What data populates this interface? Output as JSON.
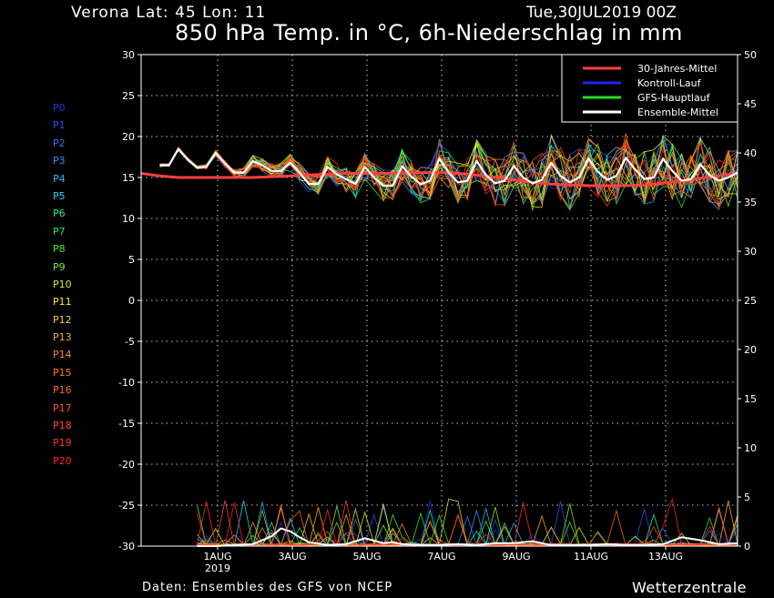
{
  "header": {
    "station": "Verona  Lat: 45 Lon: 11",
    "run": "Tue,30JUL2019 00Z",
    "title": "850 hPa Temp. in °C, 6h-Niederschlag in mm"
  },
  "footer": {
    "source": "Daten: Ensembles des GFS von NCEP",
    "brand": "Wetterzentrale"
  },
  "members": [
    "P0",
    "P1",
    "P2",
    "P3",
    "P4",
    "P5",
    "P6",
    "P7",
    "P8",
    "P9",
    "P10",
    "P11",
    "P12",
    "P13",
    "P14",
    "P15",
    "P16",
    "P17",
    "P18",
    "P19",
    "P20"
  ],
  "member_colors": [
    "#2233dd",
    "#2255ee",
    "#2277ff",
    "#2299ff",
    "#22bbff",
    "#22ddee",
    "#22ee99",
    "#22ee55",
    "#44ee22",
    "#88ee22",
    "#ccee22",
    "#ffee22",
    "#ffcc22",
    "#ffaa22",
    "#ff8822",
    "#ff7722",
    "#ff6622",
    "#ff5522",
    "#ff4422",
    "#ff3322",
    "#ff2222"
  ],
  "chart_data": {
    "type": "line",
    "x_labels": [
      "1AUG",
      "3AUG",
      "5AUG",
      "7AUG",
      "9AUG",
      "11AUG",
      "13AUG"
    ],
    "x_sublabel": "2019",
    "y_left": {
      "range": [
        -30,
        30
      ],
      "ticks": [
        30,
        25,
        20,
        15,
        10,
        5,
        0,
        -5,
        -10,
        -15,
        -20,
        -25,
        -30
      ]
    },
    "y_right": {
      "range": [
        0,
        50
      ],
      "ticks": [
        50,
        45,
        40,
        35,
        30,
        25,
        20,
        15,
        10,
        5,
        0
      ]
    },
    "grid": true,
    "legend_position": "top-right",
    "legend": [
      {
        "label": "30-Jahres-Mittel",
        "color": "#ff4040"
      },
      {
        "label": "Kontroll-Lauf",
        "color": "#2222ff"
      },
      {
        "label": "GFS-Hauptlauf",
        "color": "#22dd22"
      },
      {
        "label": "Ensemble-Mittel",
        "color": "#ffffff"
      }
    ],
    "series": [
      {
        "name": "30-Jahres-Mittel",
        "axis": "left",
        "x": [
          -1.5,
          -1,
          -0.5,
          0,
          0.5,
          1,
          1.5,
          2,
          2.5,
          3,
          3.5,
          4,
          4.5,
          5,
          5.5,
          6,
          6.5,
          7,
          7.5,
          8,
          8.5,
          9,
          9.5,
          10,
          10.5,
          11,
          11.5,
          12,
          12.5,
          13,
          13.5,
          14,
          14.5
        ],
        "y": [
          15.5,
          15.2,
          15.0,
          15.0,
          15.0,
          15.0,
          15.0,
          15.1,
          15.2,
          15.3,
          15.4,
          15.5,
          15.5,
          15.5,
          15.6,
          15.6,
          15.6,
          15.5,
          15.3,
          15.0,
          14.7,
          14.4,
          14.2,
          14.1,
          14.0,
          14.0,
          14.0,
          14.1,
          14.3,
          14.6,
          14.9,
          15.2,
          15.5
        ]
      },
      {
        "name": "Ensemble-Mittel",
        "axis": "left",
        "x": [
          -1,
          -0.75,
          -0.5,
          -0.25,
          0,
          0.25,
          0.5,
          0.75,
          1,
          1.25,
          1.5,
          1.75,
          2,
          2.25,
          2.5,
          2.75,
          3,
          3.25,
          3.5,
          3.75,
          4,
          4.25,
          4.5,
          4.75,
          5,
          5.25,
          5.5,
          5.75,
          6,
          6.25,
          6.5,
          6.75,
          7,
          7.25,
          7.5,
          7.75,
          8,
          8.25,
          8.5,
          8.75,
          9,
          9.25,
          9.5,
          9.75,
          10,
          10.25,
          10.5,
          10.75,
          11,
          11.25,
          11.5,
          11.75,
          12,
          12.25,
          12.5,
          12.75,
          13,
          13.25,
          13.5,
          13.75,
          14,
          14.25,
          14.5
        ],
        "y": [
          16.5,
          16.5,
          18.5,
          17.2,
          16.2,
          16.3,
          18.0,
          16.7,
          15.6,
          15.6,
          17.0,
          16.5,
          15.8,
          15.8,
          16.8,
          15.6,
          14.2,
          14.2,
          16.3,
          15.4,
          14.8,
          14.2,
          16.3,
          15.0,
          14.0,
          14.0,
          16.4,
          15.1,
          14.2,
          14.6,
          17.3,
          15.6,
          14.4,
          14.6,
          17.0,
          15.3,
          14.3,
          14.6,
          16.4,
          15.0,
          14.3,
          14.7,
          16.8,
          15.2,
          14.4,
          15.0,
          17.3,
          15.7,
          14.7,
          15.2,
          17.4,
          16.0,
          14.8,
          15.0,
          17.3,
          15.8,
          14.6,
          14.8,
          16.6,
          15.3,
          14.6,
          15.0,
          15.6
        ]
      },
      {
        "name": "Niederschlag Ensemble-Mittel",
        "axis": "right",
        "x": [
          0,
          0.5,
          1,
          1.5,
          2,
          2.25,
          2.5,
          2.75,
          3,
          3.5,
          4,
          4.5,
          5,
          5.25,
          5.5,
          6,
          6.5,
          7,
          7.5,
          8,
          8.5,
          9,
          9.5,
          10,
          10.5,
          11,
          11.5,
          12,
          12.5,
          13,
          13.5,
          14,
          14.5
        ],
        "y": [
          0,
          0,
          0.1,
          0.2,
          1.0,
          1.8,
          1.5,
          0.9,
          0.4,
          0.1,
          0.2,
          0.8,
          0.3,
          0.4,
          0.2,
          0.1,
          0.1,
          0.2,
          0.1,
          0.3,
          0.3,
          0.5,
          0.1,
          0.1,
          0.1,
          0.2,
          0.1,
          0.1,
          0.2,
          0.9,
          0.6,
          0.2,
          0.3
        ]
      }
    ]
  }
}
